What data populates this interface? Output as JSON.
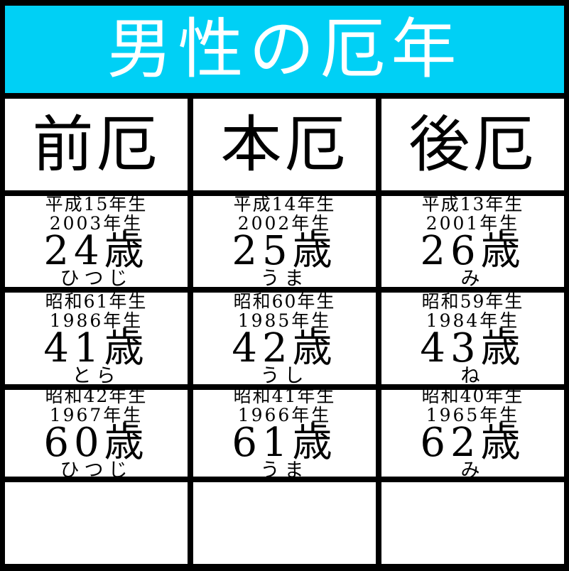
{
  "title": "男性の厄年",
  "columns": [
    {
      "label": "前厄"
    },
    {
      "label": "本厄"
    },
    {
      "label": "後厄"
    }
  ],
  "rows": [
    {
      "cells": [
        {
          "era": "平成15年生",
          "year": "2003年生",
          "age": "24歳",
          "zodiac": "ひつじ"
        },
        {
          "era": "平成14年生",
          "year": "2002年生",
          "age": "25歳",
          "zodiac": "うま"
        },
        {
          "era": "平成13年生",
          "year": "2001年生",
          "age": "26歳",
          "zodiac": "み"
        }
      ]
    },
    {
      "cells": [
        {
          "era": "昭和61年生",
          "year": "1986年生",
          "age": "41歳",
          "zodiac": "とら"
        },
        {
          "era": "昭和60年生",
          "year": "1985年生",
          "age": "42歳",
          "zodiac": "うし"
        },
        {
          "era": "昭和59年生",
          "year": "1984年生",
          "age": "43歳",
          "zodiac": "ね"
        }
      ]
    },
    {
      "cells": [
        {
          "era": "昭和42年生",
          "year": "1967年生",
          "age": "60歳",
          "zodiac": "ひつじ"
        },
        {
          "era": "昭和41年生",
          "year": "1966年生",
          "age": "61歳",
          "zodiac": "うま"
        },
        {
          "era": "昭和40年生",
          "year": "1965年生",
          "age": "62歳",
          "zodiac": "み"
        }
      ]
    }
  ],
  "empty_row_cell_count": 3,
  "colors": {
    "header_bg": "#00d0f5",
    "border": "#000000",
    "cell_bg": "#ffffff",
    "title_text": "#ffffff",
    "text": "#000000"
  }
}
